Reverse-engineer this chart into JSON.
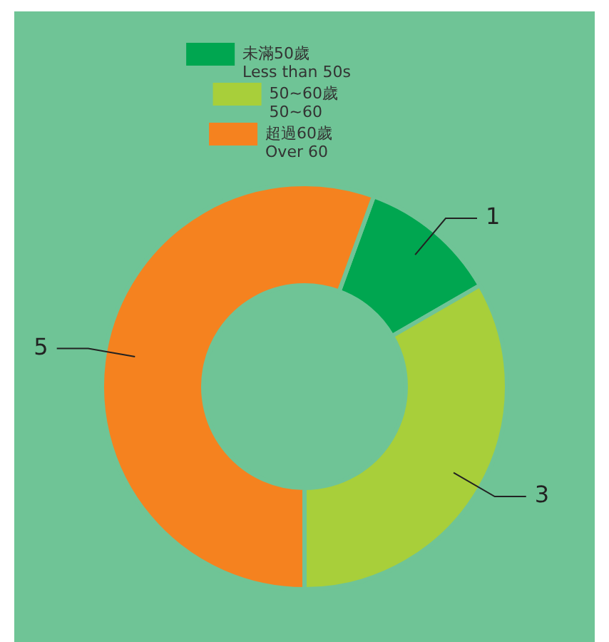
{
  "chart_data": {
    "type": "donut",
    "categories": [
      "未滿50歲\nLess than 50s",
      "50~60歲\n50~60",
      "超過60歲\nOver 60"
    ],
    "values": [
      1,
      3,
      5
    ],
    "colors": [
      "#00a650",
      "#a8cf3a",
      "#f5821f"
    ],
    "legend": "top",
    "data_labels": true
  }
}
